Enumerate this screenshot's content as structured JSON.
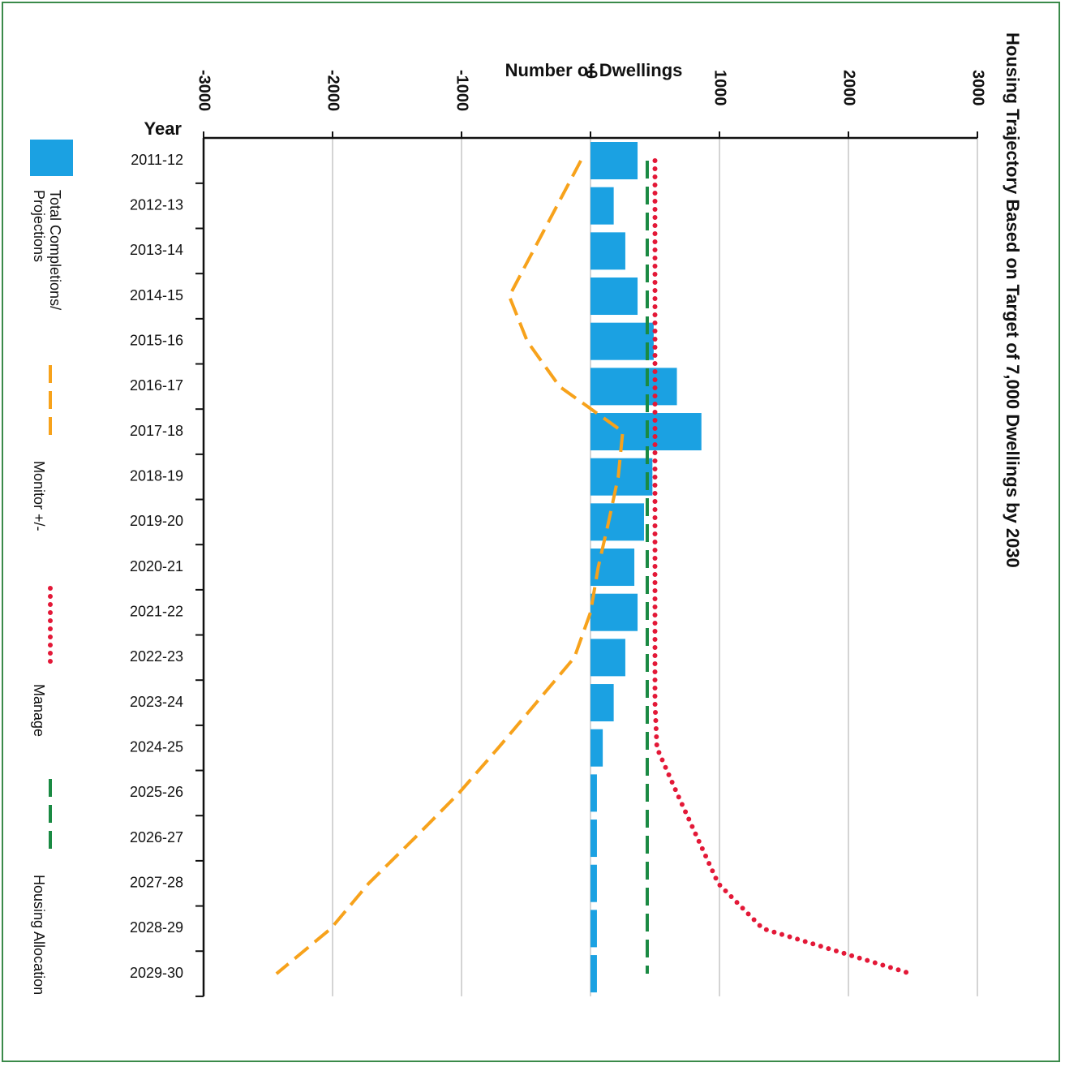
{
  "chart_data": {
    "type": "bar",
    "orientation": "horizontal",
    "title": "Housing Trajectory Based on Target of 7,000 Dwellings by 2030",
    "xlabel": "Number of Dwellings",
    "ylabel": "Year",
    "categories": [
      "2011-12",
      "2012-13",
      "2013-14",
      "2014-15",
      "2015-16",
      "2016-17",
      "2017-18",
      "2018-19",
      "2019-20",
      "2020-21",
      "2021-22",
      "2022-23",
      "2023-24",
      "2024-25",
      "2025-26",
      "2026-27",
      "2027-28",
      "2028-29",
      "2029-30"
    ],
    "xlim": [
      -3000,
      3000
    ],
    "xticks": [
      -3000,
      -2000,
      -1000,
      0,
      1000,
      2000,
      3000
    ],
    "grid": true,
    "series": [
      {
        "name": "Total Completions/ Projections",
        "kind": "bar",
        "color": "#1ba1e2",
        "values": [
          365,
          180,
          270,
          365,
          490,
          670,
          860,
          480,
          415,
          340,
          365,
          270,
          180,
          95,
          50,
          50,
          50,
          50,
          50
        ]
      },
      {
        "name": "Monitor +/-",
        "kind": "line",
        "style": "dashed",
        "color": "#f7a21b",
        "values": [
          -75,
          -260,
          -445,
          -630,
          -490,
          -240,
          250,
          215,
          140,
          60,
          0,
          -125,
          -420,
          -715,
          -1020,
          -1365,
          -1720,
          -2013,
          -2435
        ]
      },
      {
        "name": "Manage",
        "kind": "line",
        "style": "dotted",
        "color": "#e31837",
        "values": [
          500,
          500,
          500,
          500,
          500,
          500,
          500,
          500,
          500,
          500,
          500,
          500,
          500,
          515,
          670,
          830,
          990,
          1335,
          2485
        ]
      },
      {
        "name": "Housing Allocation",
        "kind": "line",
        "style": "dashed",
        "color": "#1a8a43",
        "values": [
          440,
          440,
          440,
          440,
          440,
          440,
          440,
          440,
          440,
          440,
          440,
          440,
          440,
          440,
          440,
          440,
          440,
          440,
          440
        ]
      }
    ]
  }
}
